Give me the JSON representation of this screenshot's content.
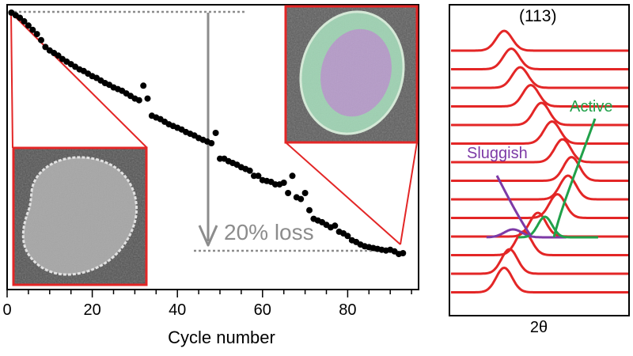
{
  "chart_data": [
    {
      "type": "scatter",
      "xlabel": "Cycle number",
      "ylabel": "",
      "xlim": [
        0,
        100
      ],
      "x_ticks": [
        "0",
        "20",
        "40",
        "60",
        "80"
      ],
      "y_axis_labels": "hidden",
      "series": [
        {
          "marker": "circle",
          "color": "#000000",
          "x": [
            1,
            2,
            3,
            4,
            5,
            6,
            7,
            8,
            9,
            10,
            11,
            12,
            13,
            14,
            15,
            16,
            17,
            18,
            19,
            20,
            21,
            22,
            23,
            24,
            25,
            26,
            27,
            28,
            29,
            30,
            31,
            32,
            33,
            34,
            35,
            36,
            37,
            38,
            39,
            40,
            41,
            42,
            43,
            44,
            45,
            46,
            47,
            48,
            49,
            50,
            51,
            52,
            53,
            54,
            55,
            56,
            57,
            58,
            59,
            60,
            61,
            62,
            63,
            64,
            65,
            66,
            67,
            68,
            69,
            70,
            71,
            72,
            73,
            74,
            75,
            76,
            77,
            78,
            79,
            80,
            81,
            82,
            83,
            84,
            85,
            86,
            87,
            88,
            89,
            90,
            91,
            92,
            93
          ],
          "y": [
            1.0,
            0.997,
            0.994,
            0.99,
            0.985,
            0.98,
            0.975,
            0.968,
            0.96,
            0.956,
            0.953,
            0.95,
            0.946,
            0.943,
            0.94,
            0.937,
            0.934,
            0.932,
            0.929,
            0.926,
            0.924,
            0.921,
            0.918,
            0.916,
            0.913,
            0.911,
            0.909,
            0.906,
            0.903,
            0.9,
            0.898,
            0.915,
            0.9,
            0.88,
            0.878,
            0.876,
            0.873,
            0.87,
            0.868,
            0.866,
            0.864,
            0.861,
            0.859,
            0.857,
            0.854,
            0.852,
            0.85,
            0.848,
            0.86,
            0.83,
            0.83,
            0.827,
            0.825,
            0.823,
            0.82,
            0.818,
            0.816,
            0.81,
            0.81,
            0.805,
            0.804,
            0.803,
            0.8,
            0.8,
            0.802,
            0.79,
            0.81,
            0.785,
            0.783,
            0.79,
            0.77,
            0.76,
            0.758,
            0.756,
            0.753,
            0.75,
            0.752,
            0.745,
            0.743,
            0.74,
            0.735,
            0.733,
            0.73,
            0.728,
            0.727,
            0.726,
            0.725,
            0.724,
            0.723,
            0.724,
            0.722,
            0.719,
            0.72
          ]
        }
      ],
      "annotations": [
        "20% loss"
      ],
      "insets": 2
    },
    {
      "type": "line",
      "xlabel": "2θ",
      "ylabel": "",
      "peak_label": "(113)",
      "labels": [
        "Active",
        "Sluggish"
      ],
      "series_color": "#e32626",
      "traces": [
        {
          "peak": 0.3,
          "amp": 25,
          "width": 0.045
        },
        {
          "peak": 0.34,
          "amp": 26,
          "width": 0.045
        },
        {
          "peak": 0.39,
          "amp": 26,
          "width": 0.045
        },
        {
          "peak": 0.45,
          "amp": 27,
          "width": 0.045
        },
        {
          "peak": 0.51,
          "amp": 28,
          "width": 0.045
        },
        {
          "peak": 0.57,
          "amp": 28,
          "width": 0.045
        },
        {
          "peak": 0.63,
          "amp": 29,
          "width": 0.045
        },
        {
          "peak": 0.68,
          "amp": 30,
          "width": 0.045
        },
        {
          "peak": 0.66,
          "amp": 30,
          "width": 0.045
        },
        {
          "peak": 0.6,
          "amp": 30,
          "width": 0.045
        },
        {
          "peak": 0.49,
          "amp": 30,
          "width": 0.045
        },
        {
          "peak": 0.41,
          "amp": 30,
          "width": 0.045
        },
        {
          "peak": 0.33,
          "amp": 31,
          "width": 0.045
        },
        {
          "peak": 0.3,
          "amp": 31,
          "width": 0.045
        }
      ],
      "active_trace": {
        "peak": 0.53,
        "amp": 26,
        "width": 0.04
      },
      "sluggish_trace": {
        "peak": 0.35,
        "amp": 10,
        "width": 0.05
      }
    }
  ],
  "colors": {
    "accent_red": "#e32626",
    "active_green": "#21a14a",
    "sluggish_purple": "#7d3aa6",
    "arrow_gray": "#8c8c8c",
    "dotted_gray": "#8c8c8c"
  }
}
